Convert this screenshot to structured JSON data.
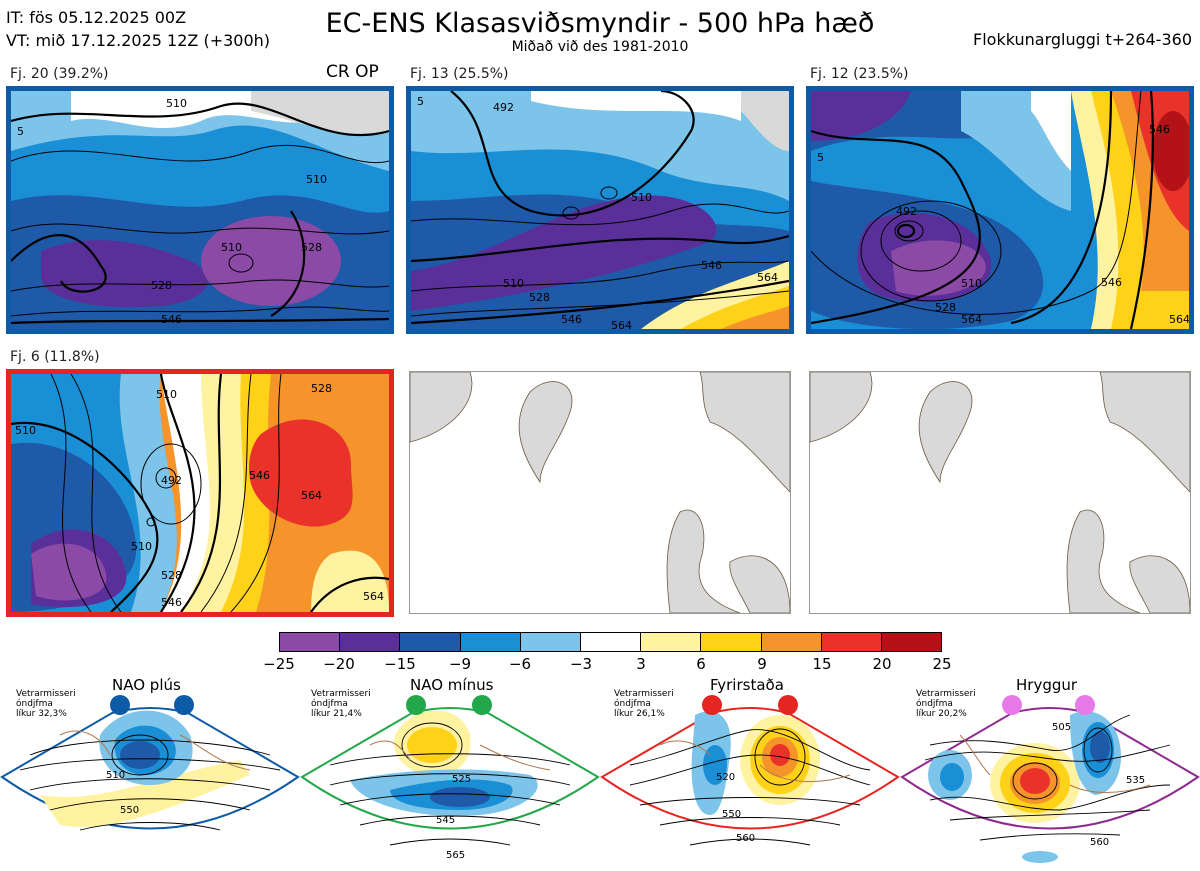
{
  "header": {
    "init_time": "IT: fös 05.12.2025 00Z",
    "valid_time": "VT: mið 17.12.2025 12Z  (+300h)",
    "title": "EC-ENS Klasasviðsmyndir - 500 hPa hæð",
    "subtitle": "Miðað við des 1981-2010",
    "window": "Flokkunargluggi t+264-360"
  },
  "clusters": [
    {
      "label": "Fj. 20 (39.2%)",
      "members": 20,
      "pct": 39.2,
      "regime_color": "#0d5aa7",
      "tag": "CR OP",
      "contours": [
        "510",
        "510",
        "510",
        "528",
        "528",
        "546",
        "5"
      ]
    },
    {
      "label": "Fj. 13 (25.5%)",
      "members": 13,
      "pct": 25.5,
      "regime_color": "#0d5aa7",
      "contours": [
        "492",
        "510",
        "510",
        "528",
        "546",
        "546",
        "564",
        "564",
        "5"
      ]
    },
    {
      "label": "Fj. 12 (23.5%)",
      "members": 12,
      "pct": 23.5,
      "regime_color": "#0d5aa7",
      "contours": [
        "492",
        "510",
        "528",
        "546",
        "546",
        "564",
        "564",
        "5"
      ]
    },
    {
      "label": "Fj. 6 (11.8%)",
      "members": 6,
      "pct": 11.8,
      "regime_color": "#e52521",
      "contours": [
        "510",
        "510",
        "492",
        "510",
        "528",
        "546",
        "546",
        "564",
        "564",
        "528"
      ]
    }
  ],
  "colorbar": {
    "ticks": [
      "−25",
      "−20",
      "−15",
      "−9",
      "−6",
      "−3",
      "3",
      "6",
      "9",
      "15",
      "20",
      "25"
    ],
    "colors": [
      "#8b4aa5",
      "#5a2f9a",
      "#1f5aa8",
      "#1a8fd6",
      "#7cc4ea",
      "#ffffff",
      "#fff2a0",
      "#ffd21a",
      "#f5942a",
      "#e8322a",
      "#b31217"
    ]
  },
  "regimes": [
    {
      "name": "NAO plús",
      "note": [
        "Vetrarmisseri",
        "óndjfma",
        "líkur 32,3%"
      ],
      "color": "#0d5aa7",
      "contours": [
        "510",
        "550"
      ]
    },
    {
      "name": "NAO mínus",
      "note": [
        "Vetrarmisseri",
        "óndjfma",
        "líkur 21,4%"
      ],
      "color": "#22a84a",
      "contours": [
        "525",
        "545",
        "565"
      ]
    },
    {
      "name": "Fyrirstaða",
      "note": [
        "Vetrarmisseri",
        "óndjfma",
        "líkur 26,1%"
      ],
      "color": "#e52521",
      "contours": [
        "520",
        "550",
        "560"
      ]
    },
    {
      "name": "Hryggur",
      "note": [
        "Vetrarmisseri",
        "óndjfma",
        "líkur 20,2%"
      ],
      "color": "#8e2a8f",
      "contours": [
        "505",
        "535",
        "560"
      ]
    }
  ]
}
